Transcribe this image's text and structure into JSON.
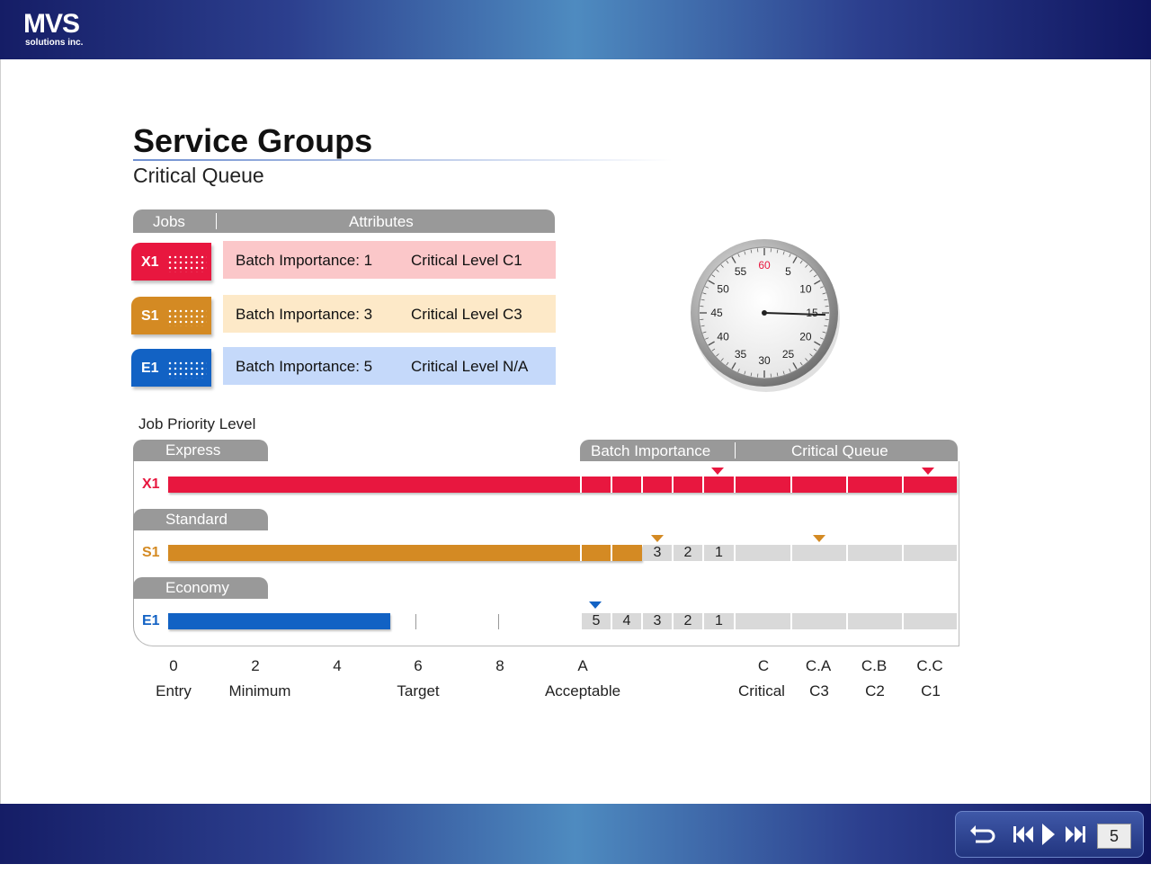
{
  "brand": {
    "name": "MVS",
    "sub": "solutions inc."
  },
  "header": {
    "title": "Service Groups",
    "subtitle": "Critical Queue"
  },
  "table": {
    "col_jobs": "Jobs",
    "col_attributes": "Attributes",
    "rows": [
      {
        "job": "X1",
        "importance": "Batch Importance: 1",
        "level": "Critical Level C1",
        "color": "#e8173f",
        "bg": "#fbc7c9"
      },
      {
        "job": "S1",
        "importance": "Batch Importance: 3",
        "level": "Critical Level C3",
        "color": "#d48a23",
        "bg": "#fde9c8"
      },
      {
        "job": "E1",
        "importance": "Batch Importance: 5",
        "level": "Critical Level N/A",
        "color": "#1262c4",
        "bg": "#c5d9fa"
      }
    ]
  },
  "stopwatch": {
    "labels": [
      "60",
      "5",
      "10",
      "15",
      "20",
      "25",
      "30",
      "35",
      "40",
      "45",
      "50",
      "55"
    ],
    "reading_seconds": 15.3
  },
  "priority": {
    "section_label": "Job Priority Level",
    "tab_batch": "Batch Importance",
    "tab_critical": "Critical Queue",
    "rows": [
      {
        "tab": "Express",
        "job": "X1",
        "color": "#e8173f"
      },
      {
        "tab": "Standard",
        "job": "S1",
        "color": "#d48a23",
        "step_labels": [
          "3",
          "2",
          "1"
        ]
      },
      {
        "tab": "Economy",
        "job": "E1",
        "color": "#1262c4",
        "step_labels": [
          "5",
          "4",
          "3",
          "2",
          "1"
        ]
      }
    ],
    "axis_values": [
      "0",
      "2",
      "4",
      "6",
      "8",
      "A",
      "C",
      "C.A",
      "C.B",
      "C.C"
    ],
    "axis_names": [
      "Entry",
      "Minimum",
      "Target",
      "Acceptable",
      "Critical",
      "C3",
      "C2",
      "C1"
    ]
  },
  "nav": {
    "page": "5",
    "icons": [
      "replay-icon",
      "previous-icon",
      "play-icon",
      "next-icon"
    ]
  }
}
